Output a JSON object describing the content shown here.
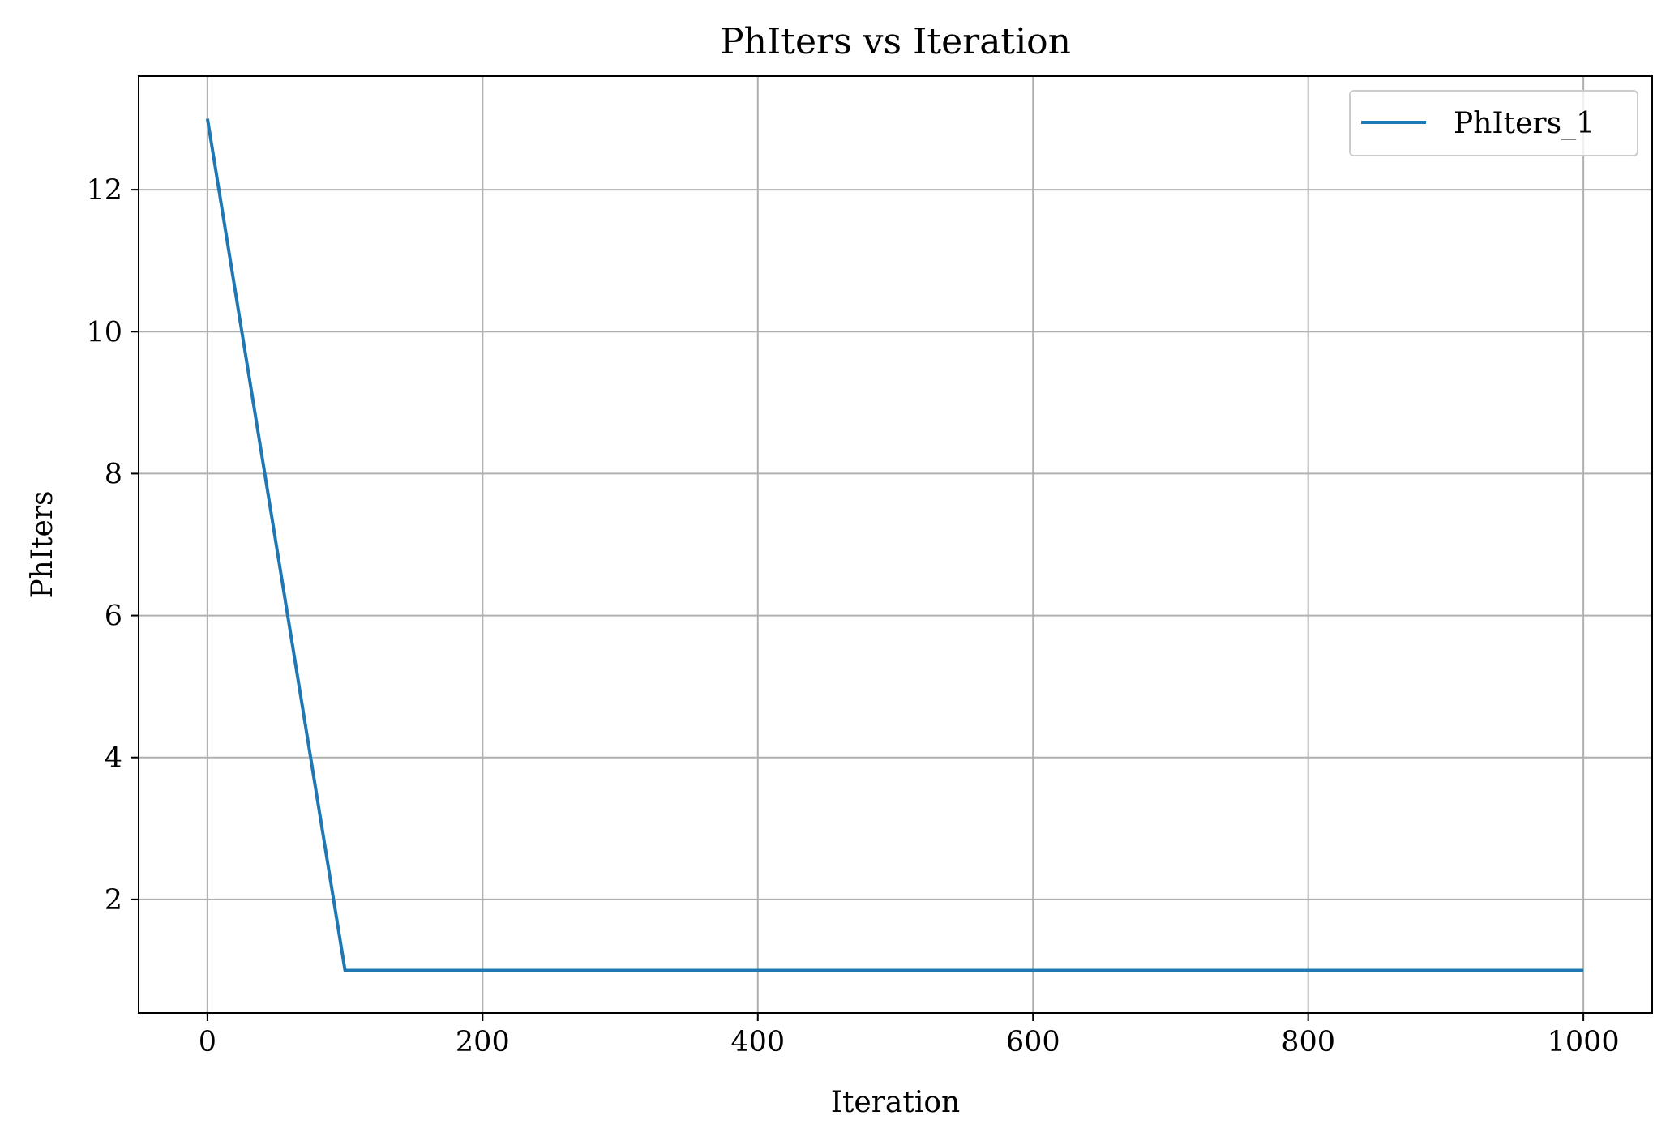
{
  "chart_data": {
    "type": "line",
    "title": "PhIters vs Iteration",
    "xlabel": "Iteration",
    "ylabel": "PhIters",
    "xlim": [
      -50,
      1050
    ],
    "ylim": [
      0.4,
      13.6
    ],
    "xticks": [
      0,
      200,
      400,
      600,
      800,
      1000
    ],
    "yticks": [
      2,
      4,
      6,
      8,
      10,
      12
    ],
    "xtick_labels": [
      "0",
      "200",
      "400",
      "600",
      "800",
      "1000"
    ],
    "ytick_labels": [
      "2",
      "4",
      "6",
      "8",
      "10",
      "12"
    ],
    "grid": true,
    "legend_position": "top-right",
    "series": [
      {
        "name": "PhIters_1",
        "color": "#1f77b4",
        "x": [
          0,
          100,
          200,
          300,
          400,
          500,
          600,
          700,
          800,
          900,
          1000
        ],
        "y": [
          13,
          1,
          1,
          1,
          1,
          1,
          1,
          1,
          1,
          1,
          1
        ]
      }
    ]
  }
}
